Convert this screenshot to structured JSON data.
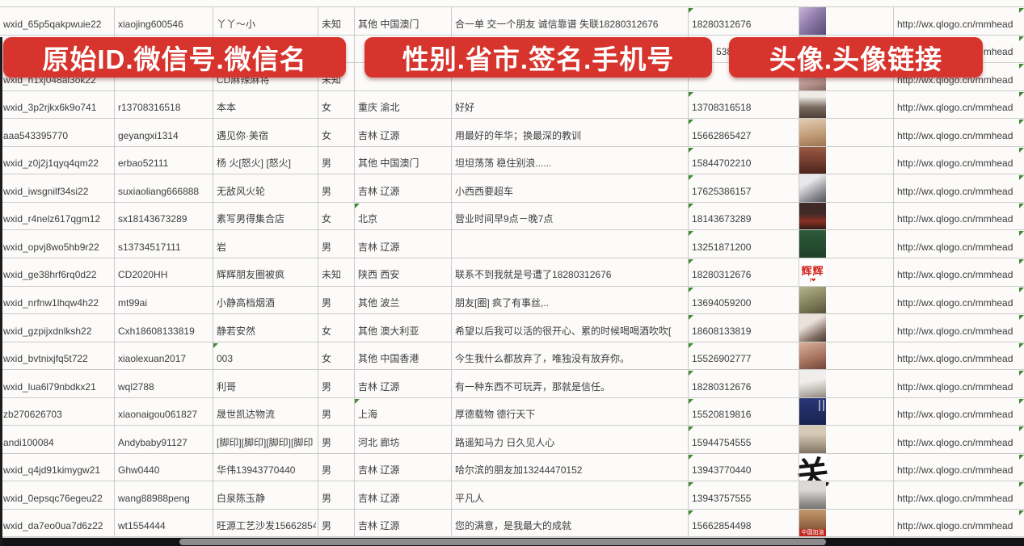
{
  "banners": [
    {
      "label": "原始ID.微信号.微信名"
    },
    {
      "label": "性别.省市.签名.手机号"
    },
    {
      "label": "头像.头像链接"
    }
  ],
  "colors": {
    "banner_red": "#d6342c",
    "flag_green": "#3f8a32"
  },
  "avatar_link_text": "http://wx.qlogo.cn/mmhead",
  "rows": [
    {
      "wxid": "wxid_65p5qakpwuie22",
      "wechat_id": "xiaojing600546",
      "name": "丫丫～小",
      "gender": "未知",
      "region": "其他 中国澳门",
      "signature": "合一单 交一个朋友 诚信靠谱 失联18280312676",
      "phone": "18280312676",
      "url": "http://wx.qlogo.cn/mmhead",
      "avatar": {
        "kind": "selfie-pink"
      },
      "flags": {
        "phone": true,
        "edge": true
      }
    },
    {
      "wxid": "",
      "wechat_id": "",
      "name": "",
      "gender": "",
      "region": "",
      "signature": "",
      "phone": "5386",
      "phone_partial": true,
      "url": "http://wx.qlogo.cn/mmhead",
      "avatar": {
        "kind": "hidden-gray"
      },
      "flags": {
        "edge": true
      }
    },
    {
      "wxid": "wxid_h1xj048al3ok22",
      "wechat_id": "",
      "name": "CD麻辣麻将",
      "gender": "未知",
      "region": "",
      "signature": "",
      "phone": "",
      "url": "http://wx.qlogo.cn/mmhead",
      "avatar": {
        "kind": "selfie-light"
      },
      "flags": {
        "edge": true
      }
    },
    {
      "wxid": "wxid_3p2rjkx6k9o741",
      "wechat_id": "r13708316518",
      "name": "本本",
      "gender": "女",
      "region": "重庆 渝北",
      "signature": "好好",
      "phone": "13708316518",
      "url": "http://wx.qlogo.cn/mmhead",
      "avatar": {
        "kind": "woman-white"
      },
      "flags": {
        "phone": true,
        "edge": true
      }
    },
    {
      "wxid": "aaa543395770",
      "wechat_id": "geyangxi1314",
      "name": "遇见你·美宿",
      "gender": "女",
      "region": "吉林 辽源",
      "signature": "用最好的年华；换最深的教训",
      "phone": "15662865427",
      "url": "http://wx.qlogo.cn/mmhead",
      "avatar": {
        "kind": "tan"
      },
      "flags": {
        "phone": true,
        "edge": true
      }
    },
    {
      "wxid": "wxid_z0j2j1qyq4qm22",
      "wechat_id": "erbao52111",
      "name": "杨 火[怒火] [怒火]",
      "gender": "男",
      "region": "其他 中国澳门",
      "signature": "坦坦荡荡 稳住别浪......",
      "phone": "15844702210",
      "url": "http://wx.qlogo.cn/mmhead",
      "avatar": {
        "kind": "group-red"
      },
      "flags": {
        "phone": true,
        "edge": true
      }
    },
    {
      "wxid": "wxid_iwsgnilf34si22",
      "wechat_id": "suxiaoliang666888",
      "name": "无敌风火轮",
      "gender": "男",
      "region": "吉林 辽源",
      "signature": "小西西要超车",
      "phone": "17625386157",
      "url": "http://wx.qlogo.cn/mmhead",
      "avatar": {
        "kind": "kid-car"
      },
      "flags": {
        "phone": true,
        "edge": true
      }
    },
    {
      "wxid": "wxid_r4nelz617qgm12",
      "wechat_id": "sx18143673289",
      "name": "素写男得集合店",
      "gender": "女",
      "region": "北京",
      "signature": "营业时间早9点－晚7点",
      "phone": "18143673289",
      "url": "http://wx.qlogo.cn/mmhead",
      "avatar": {
        "kind": "night-red"
      },
      "flags": {
        "phone": true,
        "region": true,
        "edge": true
      }
    },
    {
      "wxid": "wxid_opvj8wo5hb9r22",
      "wechat_id": "s13734517111",
      "name": "岩",
      "gender": "男",
      "region": "吉林 辽源",
      "signature": "",
      "phone": "13251871200",
      "url": "http://wx.qlogo.cn/mmhead",
      "avatar": {
        "kind": "green-poster"
      },
      "flags": {
        "phone": true,
        "edge": true
      }
    },
    {
      "wxid": "wxid_ge38hrf6rq0d22",
      "wechat_id": "CD2020HH",
      "name": "辉辉朋友圈被疯",
      "gender": "未知",
      "region": "陕西 西安",
      "signature": "联系不到我就是号遭了18280312676",
      "phone": "18280312676",
      "url": "http://wx.qlogo.cn/mmhead",
      "avatar": {
        "kind": "text-hui",
        "label": "辉辉",
        "sublabel": "I❤"
      },
      "flags": {
        "phone": true,
        "edge": true
      }
    },
    {
      "wxid": "wxid_nrfnw1lhqw4h22",
      "wechat_id": "mt99ai",
      "name": "小静高档烟酒",
      "gender": "男",
      "region": "其他 波兰",
      "signature": "朋友[圈] 疯了有事丝,..",
      "phone": "13694059200",
      "url": "http://wx.qlogo.cn/mmhead",
      "avatar": {
        "kind": "outdoor"
      },
      "flags": {
        "phone": true,
        "edge": true
      }
    },
    {
      "wxid": "wxid_gzpijxdnlksh22",
      "wechat_id": "Cxh18608133819",
      "name": "静若安然",
      "gender": "女",
      "region": "其他 澳大利亚",
      "signature": "希望以后我可以活的很开心、累的时候喝喝酒吹吹[",
      "phone": "18608133819",
      "url": "http://wx.qlogo.cn/mmhead",
      "avatar": {
        "kind": "selfie-dark"
      },
      "flags": {
        "phone": true,
        "edge": true
      }
    },
    {
      "wxid": "wxid_bvtnixjfq5t722",
      "wechat_id": "xiaolexuan2017",
      "name": "003",
      "gender": "女",
      "region": "其他 中国香港",
      "signature": "今生我什么都放弃了，唯独没有放弃你。",
      "phone": "15526902777",
      "url": "http://wx.qlogo.cn/mmhead",
      "avatar": {
        "kind": "selfie-warm"
      },
      "flags": {
        "phone": true,
        "name": true,
        "edge": true
      }
    },
    {
      "wxid": "wxid_lua6l79nbdkx21",
      "wechat_id": "wql2788",
      "name": "利哥",
      "gender": "男",
      "region": "吉林 辽源",
      "signature": "有一种东西不可玩弄，那就是信任。",
      "phone": "18280312676",
      "url": "http://wx.qlogo.cn/mmhead",
      "avatar": {
        "kind": "hooded"
      },
      "flags": {
        "phone": true,
        "edge": true
      }
    },
    {
      "wxid": "zb270626703",
      "wechat_id": "xiaonaigou061827",
      "name": "晟世凯达物流",
      "gender": "男",
      "region": "上海",
      "signature": "厚德载物 德行天下",
      "phone": "15520819816",
      "url": "http://wx.qlogo.cn/mmhead",
      "avatar": {
        "kind": "navy-qr"
      },
      "flags": {
        "phone": true,
        "region": true,
        "edge": true
      }
    },
    {
      "wxid": "andi100084",
      "wechat_id": "Andybaby91127",
      "name": "[脚印][脚印][脚印][脚印",
      "gender": "男",
      "region": "河北 廊坊",
      "signature": "路遥知马力 日久见人心",
      "phone": "15944754555",
      "url": "http://wx.qlogo.cn/mmhead",
      "avatar": {
        "kind": "scene-tan"
      },
      "flags": {
        "phone": true,
        "edge": true
      }
    },
    {
      "wxid": "wxid_q4jd91kimygw21",
      "wechat_id": "Ghw0440",
      "name": "华伟13943770440",
      "gender": "男",
      "region": "吉林 辽源",
      "signature": "哈尔滨的朋友加13244470152",
      "phone": "13943770440",
      "url": "http://wx.qlogo.cn/mmhead",
      "avatar": {
        "kind": "calligraphy",
        "label": "关"
      },
      "flags": {
        "phone": true,
        "edge": true
      }
    },
    {
      "wxid": "wxid_0epsqc76egeu22",
      "wechat_id": "wang88988peng",
      "name": "白泉陈玉静",
      "gender": "男",
      "region": "吉林 辽源",
      "signature": "平凡人",
      "phone": "13943757555",
      "url": "http://wx.qlogo.cn/mmhead",
      "avatar": {
        "kind": "scene-gray"
      },
      "flags": {
        "phone": true,
        "edge": true
      }
    },
    {
      "wxid": "wxid_da7eo0ua7d6z22",
      "wechat_id": "wt1554444",
      "name": "旺源工艺沙发15662854",
      "gender": "男",
      "region": "吉林 辽源",
      "signature": "您的满意，是我最大的成就",
      "phone": "15662854498",
      "url": "http://wx.qlogo.cn/mmhead",
      "avatar": {
        "kind": "wood-red",
        "strip_label": "中国加油"
      },
      "flags": {
        "phone": true,
        "edge": true
      }
    }
  ],
  "partial_row": {
    "avatar": {
      "kind": "face-blue"
    }
  }
}
